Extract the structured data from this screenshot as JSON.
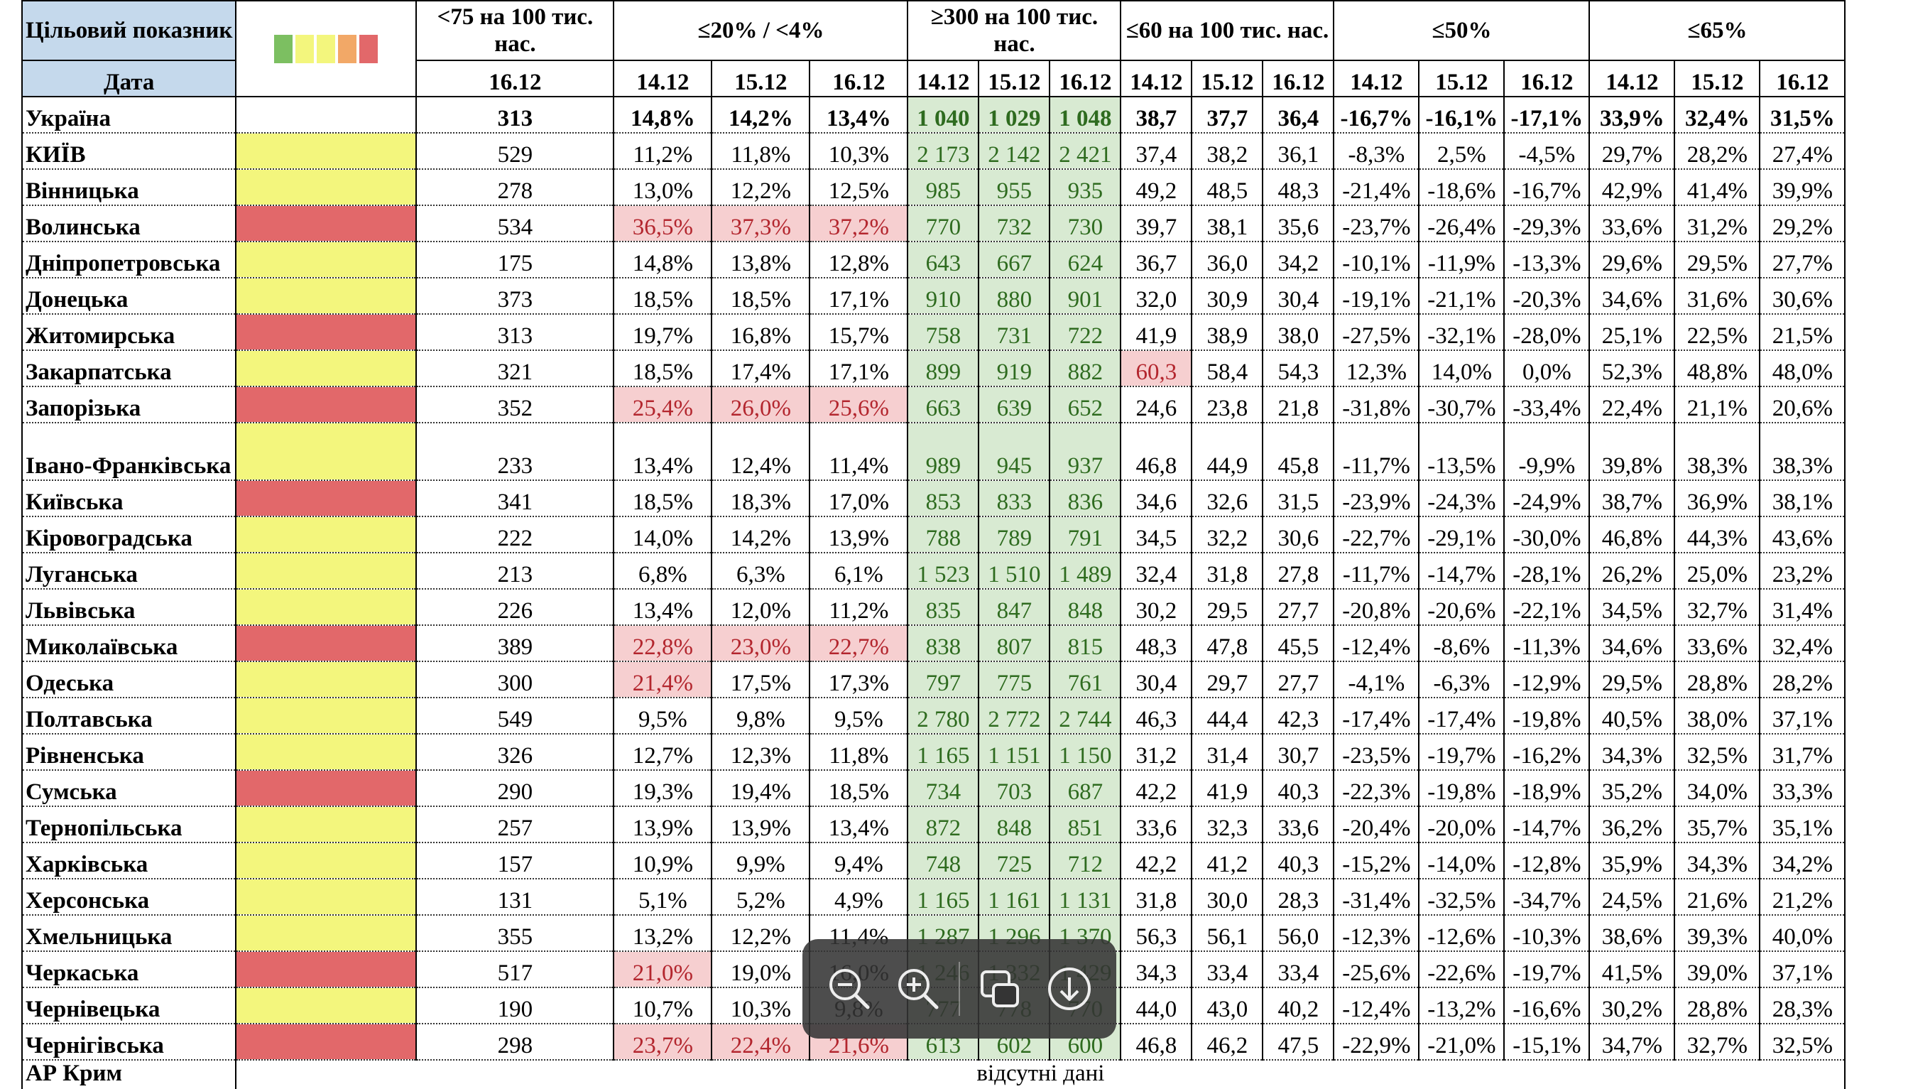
{
  "header": {
    "target_label": "Цільовий показник",
    "date_label": "Дата",
    "group_labels": [
      "<75 на 100 тис. нас.",
      "≤20% / <4%",
      "≥300 на 100 тис. нас.",
      "≤60 на 100 тис. нас.",
      "≤50%",
      "≤65%"
    ],
    "dates": [
      "16.12",
      "14.12",
      "15.12",
      "16.12",
      "14.12",
      "15.12",
      "16.12",
      "14.12",
      "15.12",
      "16.12",
      "14.12",
      "15.12",
      "16.12",
      "14.12",
      "15.12",
      "16.12"
    ]
  },
  "colors": {
    "legend": [
      "#7cbf61",
      "#f3f67d",
      "#f3f67d",
      "#f2a867",
      "#e2686a"
    ],
    "indicator_yellow": "#f3f67d",
    "indicator_red": "#e2686a",
    "header_blue": "#c5d9ec",
    "highlight_green": "#d8ead2",
    "highlight_red": "#f6cfd0"
  },
  "rows": [
    {
      "name": "Україна",
      "indicator": "none",
      "values": [
        "313",
        "14,8%",
        "14,2%",
        "13,4%",
        "1 040",
        "1 029",
        "1 048",
        "38,7",
        "37,7",
        "36,4",
        "-16,7%",
        "-16,1%",
        "-17,1%",
        "33,9%",
        "32,4%",
        "31,5%"
      ],
      "red_cells": []
    },
    {
      "name": "КИЇВ",
      "indicator": "yellow",
      "values": [
        "529",
        "11,2%",
        "11,8%",
        "10,3%",
        "2 173",
        "2 142",
        "2 421",
        "37,4",
        "38,2",
        "36,1",
        "-8,3%",
        "2,5%",
        "-4,5%",
        "29,7%",
        "28,2%",
        "27,4%"
      ],
      "red_cells": []
    },
    {
      "name": "Вінницька",
      "indicator": "yellow",
      "values": [
        "278",
        "13,0%",
        "12,2%",
        "12,5%",
        "985",
        "955",
        "935",
        "49,2",
        "48,5",
        "48,3",
        "-21,4%",
        "-18,6%",
        "-16,7%",
        "42,9%",
        "41,4%",
        "39,9%"
      ],
      "red_cells": []
    },
    {
      "name": "Волинська",
      "indicator": "red",
      "values": [
        "534",
        "36,5%",
        "37,3%",
        "37,2%",
        "770",
        "732",
        "730",
        "39,7",
        "38,1",
        "35,6",
        "-23,7%",
        "-26,4%",
        "-29,3%",
        "33,6%",
        "31,2%",
        "29,2%"
      ],
      "red_cells": [
        1,
        2,
        3
      ]
    },
    {
      "name": "Дніпропетровська",
      "indicator": "yellow",
      "values": [
        "175",
        "14,8%",
        "13,8%",
        "12,8%",
        "643",
        "667",
        "624",
        "36,7",
        "36,0",
        "34,2",
        "-10,1%",
        "-11,9%",
        "-13,3%",
        "29,6%",
        "29,5%",
        "27,7%"
      ],
      "red_cells": []
    },
    {
      "name": "Донецька",
      "indicator": "yellow",
      "values": [
        "373",
        "18,5%",
        "18,5%",
        "17,1%",
        "910",
        "880",
        "901",
        "32,0",
        "30,9",
        "30,4",
        "-19,1%",
        "-21,1%",
        "-20,3%",
        "34,6%",
        "31,6%",
        "30,6%"
      ],
      "red_cells": []
    },
    {
      "name": "Житомирська",
      "indicator": "red",
      "values": [
        "313",
        "19,7%",
        "16,8%",
        "15,7%",
        "758",
        "731",
        "722",
        "41,9",
        "38,9",
        "38,0",
        "-27,5%",
        "-32,1%",
        "-28,0%",
        "25,1%",
        "22,5%",
        "21,5%"
      ],
      "red_cells": []
    },
    {
      "name": "Закарпатська",
      "indicator": "yellow",
      "values": [
        "321",
        "18,5%",
        "17,4%",
        "17,1%",
        "899",
        "919",
        "882",
        "60,3",
        "58,4",
        "54,3",
        "12,3%",
        "14,0%",
        "0,0%",
        "52,3%",
        "48,8%",
        "48,0%"
      ],
      "red_cells": [
        7
      ]
    },
    {
      "name": "Запорізька",
      "indicator": "red",
      "values": [
        "352",
        "25,4%",
        "26,0%",
        "25,6%",
        "663",
        "639",
        "652",
        "24,6",
        "23,8",
        "21,8",
        "-31,8%",
        "-30,7%",
        "-33,4%",
        "22,4%",
        "21,1%",
        "20,6%"
      ],
      "red_cells": [
        1,
        2,
        3
      ]
    },
    {
      "name": "Івано-Франківська",
      "indicator": "yellow",
      "values": [
        "233",
        "13,4%",
        "12,4%",
        "11,4%",
        "989",
        "945",
        "937",
        "46,8",
        "44,9",
        "45,8",
        "-11,7%",
        "-13,5%",
        "-9,9%",
        "39,8%",
        "38,3%",
        "38,3%"
      ],
      "red_cells": []
    },
    {
      "name": "Київська",
      "indicator": "red",
      "values": [
        "341",
        "18,5%",
        "18,3%",
        "17,0%",
        "853",
        "833",
        "836",
        "34,6",
        "32,6",
        "31,5",
        "-23,9%",
        "-24,3%",
        "-24,9%",
        "38,7%",
        "36,9%",
        "38,1%"
      ],
      "red_cells": []
    },
    {
      "name": "Кіровоградська",
      "indicator": "yellow",
      "values": [
        "222",
        "14,0%",
        "14,2%",
        "13,9%",
        "788",
        "789",
        "791",
        "34,5",
        "32,2",
        "30,6",
        "-22,7%",
        "-29,1%",
        "-30,0%",
        "46,8%",
        "44,3%",
        "43,6%"
      ],
      "red_cells": []
    },
    {
      "name": "Луганська",
      "indicator": "yellow",
      "values": [
        "213",
        "6,8%",
        "6,3%",
        "6,1%",
        "1 523",
        "1 510",
        "1 489",
        "32,4",
        "31,8",
        "27,8",
        "-11,7%",
        "-14,7%",
        "-28,1%",
        "26,2%",
        "25,0%",
        "23,2%"
      ],
      "red_cells": []
    },
    {
      "name": "Львівська",
      "indicator": "yellow",
      "values": [
        "226",
        "13,4%",
        "12,0%",
        "11,2%",
        "835",
        "847",
        "848",
        "30,2",
        "29,5",
        "27,7",
        "-20,8%",
        "-20,6%",
        "-22,1%",
        "34,5%",
        "32,7%",
        "31,4%"
      ],
      "red_cells": []
    },
    {
      "name": "Миколаївська",
      "indicator": "red",
      "values": [
        "389",
        "22,8%",
        "23,0%",
        "22,7%",
        "838",
        "807",
        "815",
        "48,3",
        "47,8",
        "45,5",
        "-12,4%",
        "-8,6%",
        "-11,3%",
        "34,6%",
        "33,6%",
        "32,4%"
      ],
      "red_cells": [
        1,
        2,
        3
      ]
    },
    {
      "name": "Одеська",
      "indicator": "yellow",
      "values": [
        "300",
        "21,4%",
        "17,5%",
        "17,3%",
        "797",
        "775",
        "761",
        "30,4",
        "29,7",
        "27,7",
        "-4,1%",
        "-6,3%",
        "-12,9%",
        "29,5%",
        "28,8%",
        "28,2%"
      ],
      "red_cells": [
        1
      ]
    },
    {
      "name": "Полтавська",
      "indicator": "yellow",
      "values": [
        "549",
        "9,5%",
        "9,8%",
        "9,5%",
        "2 780",
        "2 772",
        "2 744",
        "46,3",
        "44,4",
        "42,3",
        "-17,4%",
        "-17,4%",
        "-19,8%",
        "40,5%",
        "38,0%",
        "37,1%"
      ],
      "red_cells": []
    },
    {
      "name": "Рівненська",
      "indicator": "yellow",
      "values": [
        "326",
        "12,7%",
        "12,3%",
        "11,8%",
        "1 165",
        "1 151",
        "1 150",
        "31,2",
        "31,4",
        "30,7",
        "-23,5%",
        "-19,7%",
        "-16,2%",
        "34,3%",
        "32,5%",
        "31,7%"
      ],
      "red_cells": []
    },
    {
      "name": "Сумська",
      "indicator": "red",
      "values": [
        "290",
        "19,3%",
        "19,4%",
        "18,5%",
        "734",
        "703",
        "687",
        "42,2",
        "41,9",
        "40,3",
        "-22,3%",
        "-19,8%",
        "-18,9%",
        "35,2%",
        "34,0%",
        "33,3%"
      ],
      "red_cells": []
    },
    {
      "name": "Тернопільська",
      "indicator": "yellow",
      "values": [
        "257",
        "13,9%",
        "13,9%",
        "13,4%",
        "872",
        "848",
        "851",
        "33,6",
        "32,3",
        "33,6",
        "-20,4%",
        "-20,0%",
        "-14,7%",
        "36,2%",
        "35,7%",
        "35,1%"
      ],
      "red_cells": []
    },
    {
      "name": "Харківська",
      "indicator": "yellow",
      "values": [
        "157",
        "10,9%",
        "9,9%",
        "9,4%",
        "748",
        "725",
        "712",
        "42,2",
        "41,2",
        "40,3",
        "-15,2%",
        "-14,0%",
        "-12,8%",
        "35,9%",
        "34,3%",
        "34,2%"
      ],
      "red_cells": []
    },
    {
      "name": "Херсонська",
      "indicator": "yellow",
      "values": [
        "131",
        "5,1%",
        "5,2%",
        "4,9%",
        "1 165",
        "1 161",
        "1 131",
        "31,8",
        "30,0",
        "28,3",
        "-31,4%",
        "-32,5%",
        "-34,7%",
        "24,5%",
        "21,6%",
        "21,2%"
      ],
      "red_cells": []
    },
    {
      "name": "Хмельницька",
      "indicator": "yellow",
      "values": [
        "355",
        "13,2%",
        "12,2%",
        "11,4%",
        "1 287",
        "1 296",
        "1 370",
        "56,3",
        "56,1",
        "56,0",
        "-12,3%",
        "-12,6%",
        "-10,3%",
        "38,6%",
        "39,3%",
        "40,0%"
      ],
      "red_cells": []
    },
    {
      "name": "Черкаська",
      "indicator": "red",
      "values": [
        "517",
        "21,0%",
        "19,0%",
        "16,0%",
        "1 246",
        "1 332",
        "1 429",
        "34,3",
        "33,4",
        "33,4",
        "-25,6%",
        "-22,6%",
        "-19,7%",
        "41,5%",
        "39,0%",
        "37,1%"
      ],
      "red_cells": [
        1
      ]
    },
    {
      "name": "Чернівецька",
      "indicator": "yellow",
      "values": [
        "190",
        "10,7%",
        "10,3%",
        "9,8%",
        "777",
        "778",
        "770",
        "44,0",
        "43,0",
        "40,2",
        "-12,4%",
        "-13,2%",
        "-16,6%",
        "30,2%",
        "28,8%",
        "28,3%"
      ],
      "red_cells": []
    },
    {
      "name": "Чернігівська",
      "indicator": "red",
      "values": [
        "298",
        "23,7%",
        "22,4%",
        "21,6%",
        "613",
        "602",
        "600",
        "46,8",
        "46,2",
        "47,5",
        "-22,9%",
        "-21,0%",
        "-15,1%",
        "34,7%",
        "32,7%",
        "32,5%"
      ],
      "red_cells": [
        1,
        2,
        3
      ]
    }
  ],
  "partial_row": {
    "name": "АР Крим",
    "note": "відсутні дані"
  },
  "toolbar": {
    "zoom_out_icon": "zoom-out-icon",
    "zoom_in_icon": "zoom-in-icon",
    "copy_icon": "copy-icon",
    "download_icon": "download-icon"
  }
}
